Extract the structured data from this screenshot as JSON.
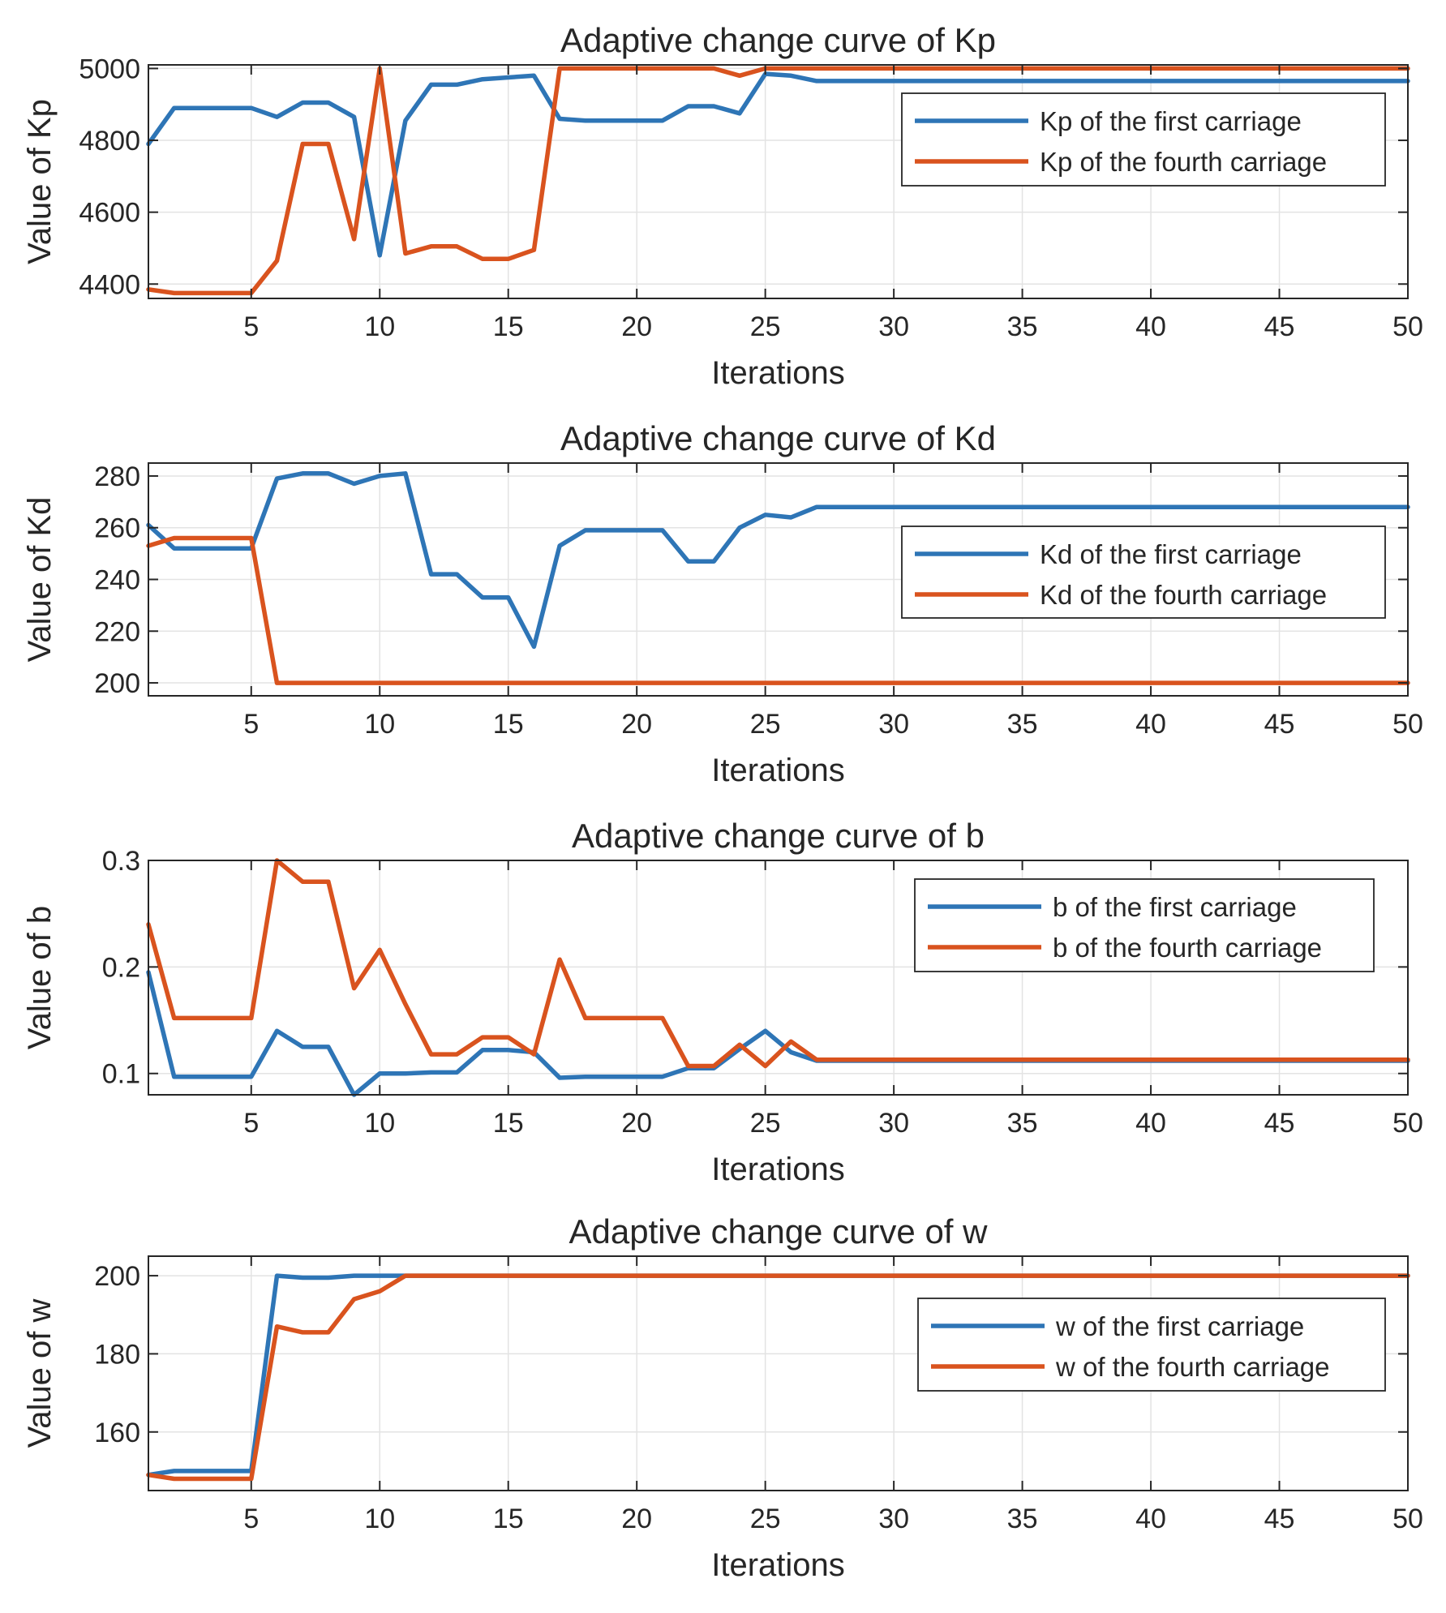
{
  "figure": {
    "background": "#ffffff"
  },
  "colors": {
    "series1": "#2e75b6",
    "series2": "#d9531e",
    "grid": "#e3e3e3",
    "axis": "#262626"
  },
  "chart_data": [
    {
      "type": "line",
      "title": "Adaptive change curve of Kp",
      "xlabel": "Iterations",
      "ylabel": "Value of Kp",
      "xlim": [
        1,
        50
      ],
      "ylim": [
        4360,
        5010
      ],
      "xticks": [
        5,
        10,
        15,
        20,
        25,
        30,
        35,
        40,
        45,
        50
      ],
      "yticks": [
        4400,
        4600,
        4800,
        5000
      ],
      "grid": true,
      "legend_position": "top-right",
      "series": [
        {
          "name": "Kp of the first carriage",
          "x": [
            1,
            2,
            3,
            4,
            5,
            6,
            7,
            8,
            9,
            10,
            11,
            12,
            13,
            14,
            15,
            16,
            17,
            18,
            19,
            20,
            21,
            22,
            23,
            24,
            25,
            26,
            27,
            28,
            29,
            30,
            31,
            32,
            33,
            34,
            35,
            36,
            37,
            38,
            39,
            40,
            41,
            42,
            43,
            44,
            45,
            46,
            47,
            48,
            49,
            50
          ],
          "values": [
            4790,
            4890,
            4890,
            4890,
            4890,
            4865,
            4905,
            4905,
            4865,
            4480,
            4855,
            4955,
            4955,
            4970,
            4975,
            4980,
            4860,
            4855,
            4855,
            4855,
            4855,
            4895,
            4895,
            4875,
            4985,
            4980,
            4965,
            4965,
            4965,
            4965,
            4965,
            4965,
            4965,
            4965,
            4965,
            4965,
            4965,
            4965,
            4965,
            4965,
            4965,
            4965,
            4965,
            4965,
            4965,
            4965,
            4965,
            4965,
            4965,
            4965
          ]
        },
        {
          "name": "Kp of the fourth carriage",
          "x": [
            1,
            2,
            3,
            4,
            5,
            6,
            7,
            8,
            9,
            10,
            11,
            12,
            13,
            14,
            15,
            16,
            17,
            18,
            19,
            20,
            21,
            22,
            23,
            24,
            25,
            26,
            27,
            28,
            29,
            30,
            31,
            32,
            33,
            34,
            35,
            36,
            37,
            38,
            39,
            40,
            41,
            42,
            43,
            44,
            45,
            46,
            47,
            48,
            49,
            50
          ],
          "values": [
            4385,
            4375,
            4375,
            4375,
            4375,
            4465,
            4790,
            4790,
            4525,
            5000,
            4485,
            4505,
            4505,
            4470,
            4470,
            4495,
            5000,
            5000,
            5000,
            5000,
            5000,
            5000,
            5000,
            4980,
            5000,
            5000,
            5000,
            5000,
            5000,
            5000,
            5000,
            5000,
            5000,
            5000,
            5000,
            5000,
            5000,
            5000,
            5000,
            5000,
            5000,
            5000,
            5000,
            5000,
            5000,
            5000,
            5000,
            5000,
            5000,
            5000
          ]
        }
      ]
    },
    {
      "type": "line",
      "title": "Adaptive change curve of Kd",
      "xlabel": "Iterations",
      "ylabel": "Value of Kd",
      "xlim": [
        1,
        50
      ],
      "ylim": [
        195,
        285
      ],
      "xticks": [
        5,
        10,
        15,
        20,
        25,
        30,
        35,
        40,
        45,
        50
      ],
      "yticks": [
        200,
        220,
        240,
        260,
        280
      ],
      "grid": true,
      "legend_position": "right",
      "series": [
        {
          "name": "Kd of the first carriage",
          "x": [
            1,
            2,
            3,
            4,
            5,
            6,
            7,
            8,
            9,
            10,
            11,
            12,
            13,
            14,
            15,
            16,
            17,
            18,
            19,
            20,
            21,
            22,
            23,
            24,
            25,
            26,
            27,
            28,
            29,
            30,
            31,
            32,
            33,
            34,
            35,
            36,
            37,
            38,
            39,
            40,
            41,
            42,
            43,
            44,
            45,
            46,
            47,
            48,
            49,
            50
          ],
          "values": [
            261,
            252,
            252,
            252,
            252,
            279,
            281,
            281,
            277,
            280,
            281,
            242,
            242,
            233,
            233,
            214,
            253,
            259,
            259,
            259,
            259,
            247,
            247,
            260,
            265,
            264,
            268,
            268,
            268,
            268,
            268,
            268,
            268,
            268,
            268,
            268,
            268,
            268,
            268,
            268,
            268,
            268,
            268,
            268,
            268,
            268,
            268,
            268,
            268,
            268
          ]
        },
        {
          "name": "Kd of the fourth carriage",
          "x": [
            1,
            2,
            3,
            4,
            5,
            6,
            7,
            8,
            9,
            10,
            11,
            12,
            13,
            14,
            15,
            16,
            17,
            18,
            19,
            20,
            21,
            22,
            23,
            24,
            25,
            26,
            27,
            28,
            29,
            30,
            31,
            32,
            33,
            34,
            35,
            36,
            37,
            38,
            39,
            40,
            41,
            42,
            43,
            44,
            45,
            46,
            47,
            48,
            49,
            50
          ],
          "values": [
            253,
            256,
            256,
            256,
            256,
            200,
            200,
            200,
            200,
            200,
            200,
            200,
            200,
            200,
            200,
            200,
            200,
            200,
            200,
            200,
            200,
            200,
            200,
            200,
            200,
            200,
            200,
            200,
            200,
            200,
            200,
            200,
            200,
            200,
            200,
            200,
            200,
            200,
            200,
            200,
            200,
            200,
            200,
            200,
            200,
            200,
            200,
            200,
            200,
            200
          ]
        }
      ]
    },
    {
      "type": "line",
      "title": "Adaptive change curve of b",
      "xlabel": "Iterations",
      "ylabel": "Value of b",
      "xlim": [
        1,
        50
      ],
      "ylim": [
        0.08,
        0.3
      ],
      "xticks": [
        5,
        10,
        15,
        20,
        25,
        30,
        35,
        40,
        45,
        50
      ],
      "yticks": [
        0.1,
        0.2,
        0.3
      ],
      "grid": true,
      "legend_position": "top-right",
      "series": [
        {
          "name": "b of the first carriage",
          "x": [
            1,
            2,
            3,
            4,
            5,
            6,
            7,
            8,
            9,
            10,
            11,
            12,
            13,
            14,
            15,
            16,
            17,
            18,
            19,
            20,
            21,
            22,
            23,
            24,
            25,
            26,
            27,
            28,
            29,
            30,
            31,
            32,
            33,
            34,
            35,
            36,
            37,
            38,
            39,
            40,
            41,
            42,
            43,
            44,
            45,
            46,
            47,
            48,
            49,
            50
          ],
          "values": [
            0.195,
            0.097,
            0.097,
            0.097,
            0.097,
            0.14,
            0.125,
            0.125,
            0.08,
            0.1,
            0.1,
            0.101,
            0.101,
            0.122,
            0.122,
            0.12,
            0.096,
            0.097,
            0.097,
            0.097,
            0.097,
            0.105,
            0.105,
            0.123,
            0.14,
            0.12,
            0.112,
            0.112,
            0.112,
            0.112,
            0.112,
            0.112,
            0.112,
            0.112,
            0.112,
            0.112,
            0.112,
            0.112,
            0.112,
            0.112,
            0.112,
            0.112,
            0.112,
            0.112,
            0.112,
            0.112,
            0.112,
            0.112,
            0.112,
            0.112
          ]
        },
        {
          "name": "b of the fourth carriage",
          "x": [
            1,
            2,
            3,
            4,
            5,
            6,
            7,
            8,
            9,
            10,
            11,
            12,
            13,
            14,
            15,
            16,
            17,
            18,
            19,
            20,
            21,
            22,
            23,
            24,
            25,
            26,
            27,
            28,
            29,
            30,
            31,
            32,
            33,
            34,
            35,
            36,
            37,
            38,
            39,
            40,
            41,
            42,
            43,
            44,
            45,
            46,
            47,
            48,
            49,
            50
          ],
          "values": [
            0.24,
            0.152,
            0.152,
            0.152,
            0.152,
            0.3,
            0.28,
            0.28,
            0.18,
            0.216,
            0.165,
            0.118,
            0.118,
            0.134,
            0.134,
            0.118,
            0.207,
            0.152,
            0.152,
            0.152,
            0.152,
            0.107,
            0.107,
            0.127,
            0.107,
            0.13,
            0.113,
            0.113,
            0.113,
            0.113,
            0.113,
            0.113,
            0.113,
            0.113,
            0.113,
            0.113,
            0.113,
            0.113,
            0.113,
            0.113,
            0.113,
            0.113,
            0.113,
            0.113,
            0.113,
            0.113,
            0.113,
            0.113,
            0.113,
            0.113
          ]
        }
      ]
    },
    {
      "type": "line",
      "title": "Adaptive change curve of w",
      "xlabel": "Iterations",
      "ylabel": "Value of w",
      "xlim": [
        1,
        50
      ],
      "ylim": [
        145,
        205
      ],
      "xticks": [
        5,
        10,
        15,
        20,
        25,
        30,
        35,
        40,
        45,
        50
      ],
      "yticks": [
        160,
        180,
        200
      ],
      "grid": true,
      "legend_position": "right",
      "series": [
        {
          "name": "w of the first carriage",
          "x": [
            1,
            2,
            3,
            4,
            5,
            6,
            7,
            8,
            9,
            10,
            11,
            12,
            13,
            14,
            15,
            16,
            17,
            18,
            19,
            20,
            21,
            22,
            23,
            24,
            25,
            26,
            27,
            28,
            29,
            30,
            31,
            32,
            33,
            34,
            35,
            36,
            37,
            38,
            39,
            40,
            41,
            42,
            43,
            44,
            45,
            46,
            47,
            48,
            49,
            50
          ],
          "values": [
            149,
            150,
            150,
            150,
            150,
            200,
            199.5,
            199.5,
            200,
            200,
            200,
            200,
            200,
            200,
            200,
            200,
            200,
            200,
            200,
            200,
            200,
            200,
            200,
            200,
            200,
            200,
            200,
            200,
            200,
            200,
            200,
            200,
            200,
            200,
            200,
            200,
            200,
            200,
            200,
            200,
            200,
            200,
            200,
            200,
            200,
            200,
            200,
            200,
            200,
            200
          ]
        },
        {
          "name": "w of the fourth carriage",
          "x": [
            1,
            2,
            3,
            4,
            5,
            6,
            7,
            8,
            9,
            10,
            11,
            12,
            13,
            14,
            15,
            16,
            17,
            18,
            19,
            20,
            21,
            22,
            23,
            24,
            25,
            26,
            27,
            28,
            29,
            30,
            31,
            32,
            33,
            34,
            35,
            36,
            37,
            38,
            39,
            40,
            41,
            42,
            43,
            44,
            45,
            46,
            47,
            48,
            49,
            50
          ],
          "values": [
            149,
            148,
            148,
            148,
            148,
            187,
            185.5,
            185.5,
            194,
            196,
            200,
            200,
            200,
            200,
            200,
            200,
            200,
            200,
            200,
            200,
            200,
            200,
            200,
            200,
            200,
            200,
            200,
            200,
            200,
            200,
            200,
            200,
            200,
            200,
            200,
            200,
            200,
            200,
            200,
            200,
            200,
            200,
            200,
            200,
            200,
            200,
            200,
            200,
            200,
            200
          ]
        }
      ]
    }
  ]
}
